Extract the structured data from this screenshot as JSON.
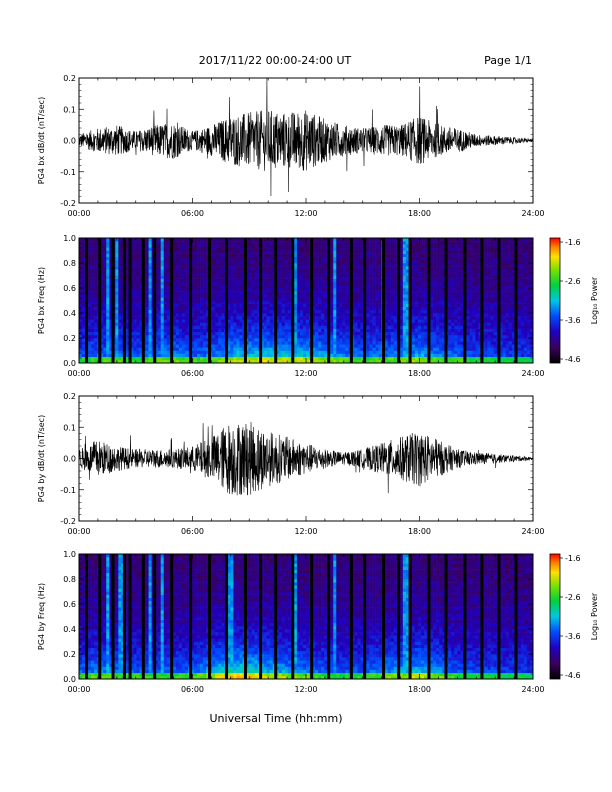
{
  "header": {
    "date_range": "2017/11/22  00:00-24:00 UT",
    "page": "Page 1/1"
  },
  "xlabel": "Universal Time (hh:mm)",
  "x_ticks": [
    "00:00",
    "06:00",
    "12:00",
    "18:00",
    "24:00"
  ],
  "colorbar": {
    "label": "Log₁₀ Power",
    "ticks": [
      "-1.6",
      "-2.6",
      "-3.6",
      "-4.6"
    ],
    "range": [
      -4.6,
      -1.6
    ]
  },
  "chart_data": [
    {
      "type": "line",
      "ylabel": "PG4 bx dB/dt (nT/sec)",
      "xlim": [
        0,
        24
      ],
      "ylim": [
        -0.2,
        0.2
      ],
      "y_ticks": [
        "0.2",
        "0.1",
        "0.0",
        "-0.1",
        "-0.2"
      ],
      "envelope": {
        "hours": [
          0,
          1,
          2,
          3,
          4,
          5,
          6,
          7,
          8,
          9,
          10,
          11,
          12,
          13,
          14,
          15,
          16,
          17,
          18,
          19,
          20,
          21,
          22,
          23,
          24
        ],
        "amplitude": [
          0.02,
          0.04,
          0.05,
          0.03,
          0.05,
          0.06,
          0.03,
          0.05,
          0.08,
          0.09,
          0.1,
          0.09,
          0.1,
          0.07,
          0.05,
          0.04,
          0.05,
          0.05,
          0.08,
          0.05,
          0.04,
          0.02,
          0.015,
          0.01,
          0.005
        ]
      }
    },
    {
      "type": "heatmap",
      "ylabel": "PG4 bx Freq (Hz)",
      "xlim": [
        0,
        24
      ],
      "ylim": [
        0,
        1.0
      ],
      "y_ticks": [
        "1.0",
        "0.8",
        "0.6",
        "0.4",
        "0.2",
        "0.0"
      ],
      "color_scale": "log10 power, -4.6 to -1.6",
      "gap_hours": [
        0.4,
        1.1,
        1.8,
        2.4,
        2.7,
        3.4,
        4.0,
        4.9,
        5.9,
        6.9,
        7.8,
        8.8,
        9.6,
        10.4,
        11.3,
        12.3,
        13.2,
        14.4,
        15.1,
        16.1,
        16.9,
        17.5,
        18.5,
        19.4,
        20.4,
        21.3,
        22.2,
        23.1
      ],
      "spike_hours": [
        1.5,
        2.0,
        3.8,
        4.4,
        11.4,
        13.5,
        16.1,
        17.3
      ]
    },
    {
      "type": "line",
      "ylabel": "PG4 by dB/dt (nT/sec)",
      "xlim": [
        0,
        24
      ],
      "ylim": [
        -0.2,
        0.2
      ],
      "y_ticks": [
        "0.2",
        "0.1",
        "0.0",
        "-0.1",
        "-0.2"
      ],
      "envelope": {
        "hours": [
          0,
          1,
          2,
          3,
          4,
          5,
          6,
          7,
          8,
          9,
          10,
          11,
          12,
          13,
          14,
          15,
          16,
          17,
          18,
          19,
          20,
          21,
          22,
          23,
          24
        ],
        "amplitude": [
          0.03,
          0.06,
          0.04,
          0.03,
          0.03,
          0.03,
          0.04,
          0.07,
          0.12,
          0.12,
          0.09,
          0.07,
          0.05,
          0.03,
          0.02,
          0.03,
          0.05,
          0.07,
          0.09,
          0.06,
          0.03,
          0.02,
          0.015,
          0.01,
          0.005
        ]
      }
    },
    {
      "type": "heatmap",
      "ylabel": "PG4 by Freq (Hz)",
      "xlim": [
        0,
        24
      ],
      "ylim": [
        0,
        1.0
      ],
      "y_ticks": [
        "1.0",
        "0.8",
        "0.6",
        "0.4",
        "0.2",
        "0.0"
      ],
      "color_scale": "log10 power, -4.6 to -1.6",
      "gap_hours": [
        0.4,
        1.1,
        1.8,
        2.4,
        2.7,
        3.4,
        4.0,
        4.9,
        5.9,
        6.9,
        7.8,
        8.8,
        9.6,
        10.4,
        11.3,
        12.3,
        13.2,
        14.4,
        15.1,
        16.1,
        16.9,
        17.5,
        18.5,
        19.4,
        20.4,
        21.3,
        22.2,
        23.1
      ],
      "spike_hours": [
        1.5,
        2.2,
        3.8,
        4.4,
        8.0,
        11.4,
        13.5,
        17.3
      ]
    }
  ]
}
